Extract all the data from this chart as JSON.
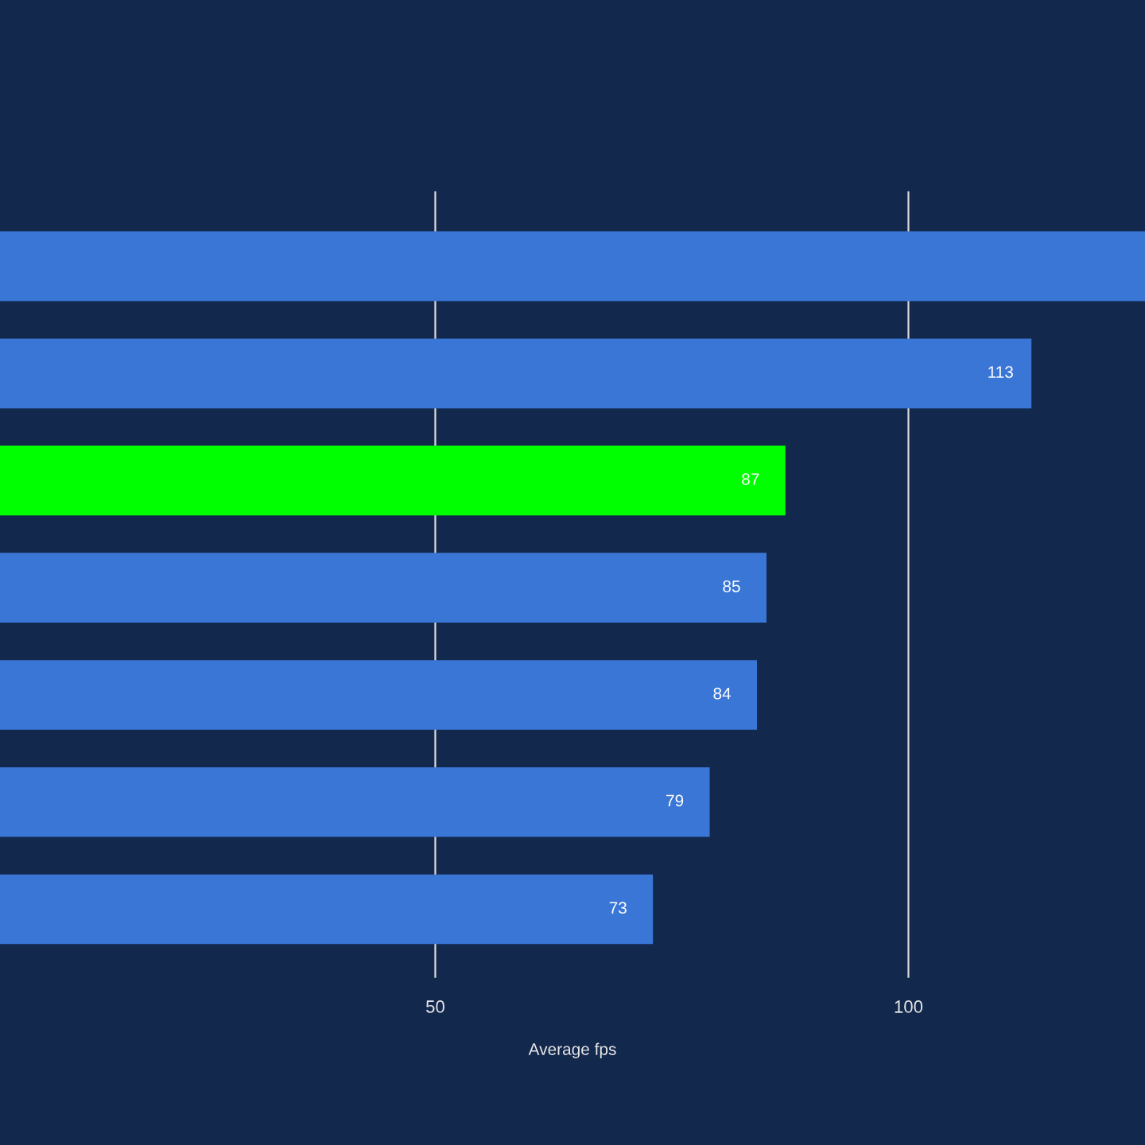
{
  "chart_data": {
    "type": "bar",
    "orientation": "horizontal",
    "xlabel": "Average fps",
    "categories": [
      null,
      null,
      null,
      null,
      null,
      null,
      null
    ],
    "values": [
      125,
      113,
      87,
      85,
      84,
      79,
      73
    ],
    "colors": [
      "#3a76d6",
      "#3a76d6",
      "#00ff00",
      "#3a76d6",
      "#3a76d6",
      "#3a76d6",
      "#3a76d6"
    ],
    "value_labels": [
      null,
      "113",
      "87",
      "85",
      "84",
      "79",
      "73"
    ],
    "xlim": [
      4,
      125
    ],
    "xticks": [
      50,
      100
    ],
    "grid": "x",
    "tick_labels": "x"
  }
}
